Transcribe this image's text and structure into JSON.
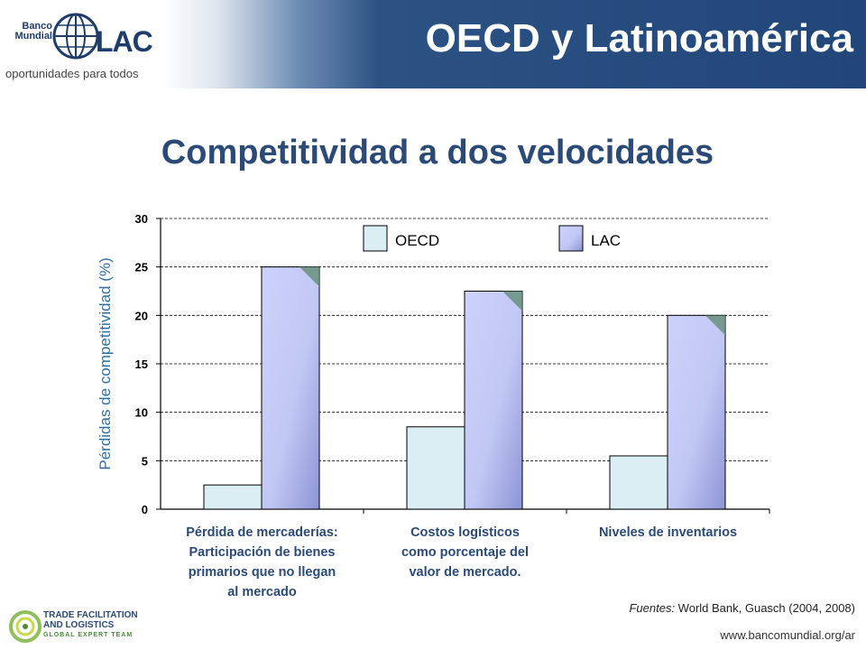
{
  "header": {
    "title": "OECD y Latinoamérica",
    "logo": {
      "bank": "Banco\nMundial",
      "lac": "LAC",
      "tagline": "oportunidades para todos"
    }
  },
  "subtitle": "Competitividad a dos velocidades",
  "colors": {
    "oecd": "#daeef3",
    "lac": "#ccd2fa",
    "lac_dark": "#8c94d6",
    "title": "#2b4a75",
    "ylabel": "#2e6fa3"
  },
  "chart_data": {
    "type": "bar",
    "ylabel": "Pérdidas de competitividad (%)",
    "ylim": [
      0,
      30
    ],
    "yticks": [
      0,
      5,
      10,
      15,
      20,
      25,
      30
    ],
    "grid": true,
    "legend_position": "top",
    "categories": [
      "Pérdida de mercaderías: Participación de bienes primarios que no llegan al mercado",
      "Costos logísticos como porcentaje del valor de mercado.",
      "Niveles de inventarios"
    ],
    "category_lines": [
      [
        "Pérdida de mercaderías:",
        "Participación de bienes",
        "primarios que no llegan",
        "al mercado"
      ],
      [
        "Costos logísticos",
        "como porcentaje del",
        "valor de mercado."
      ],
      [
        "Niveles de inventarios"
      ]
    ],
    "series": [
      {
        "name": "OECD",
        "values": [
          2.5,
          8.5,
          5.5
        ]
      },
      {
        "name": "LAC",
        "values": [
          25,
          22.5,
          20
        ]
      }
    ]
  },
  "footer": {
    "source_label": "Fuentes:",
    "source_text": " World Bank, Guasch (2004, 2008)",
    "url": "www.bancomundial.org/ar",
    "tfl_line1": "TRADE FACILITATION",
    "tfl_line2": "AND LOGISTICS",
    "tfl_line3": "GLOBAL EXPERT TEAM"
  }
}
